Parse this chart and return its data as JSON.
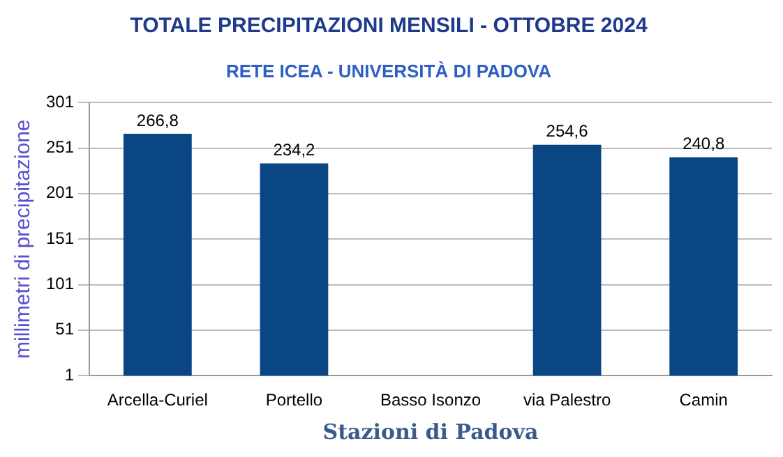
{
  "chart_data": {
    "type": "bar",
    "title": "TOTALE PRECIPITAZIONI MENSILI - OTTOBRE 2024",
    "subtitle": "RETE ICEA - UNIVERSITÀ DI PADOVA",
    "xlabel": "Stazioni di Padova",
    "ylabel": "millimetri di precipitazione",
    "categories": [
      "Arcella-Curiel",
      "Portello",
      "Basso Isonzo",
      "via Palestro",
      "Camin"
    ],
    "values": [
      266.8,
      234.2,
      null,
      254.6,
      240.8
    ],
    "value_labels": [
      "266,8",
      "234,2",
      null,
      "254,6",
      "240,8"
    ],
    "color": "#0a4584",
    "ylim": [
      1,
      301
    ],
    "yticks": [
      1,
      51,
      101,
      151,
      201,
      251,
      301
    ],
    "grid": "y",
    "legend": false
  }
}
